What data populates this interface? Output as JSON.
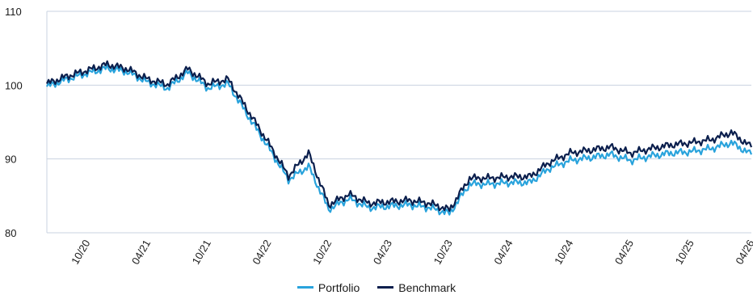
{
  "chart_data": {
    "type": "line",
    "title": "",
    "xlabel": "",
    "ylabel": "",
    "ylim": [
      80,
      110
    ],
    "yticks": [
      "80",
      "90",
      "100",
      "110"
    ],
    "xticks": [
      "10/20",
      "04/21",
      "10/21",
      "04/22",
      "10/22",
      "04/23",
      "10/23",
      "04/24",
      "10/24",
      "04/25",
      "10/25",
      "04/26"
    ],
    "x": [
      "06/20",
      "08/20",
      "10/20",
      "12/20",
      "02/21",
      "04/21",
      "06/21",
      "08/21",
      "10/21",
      "12/21",
      "02/22",
      "04/22",
      "06/22",
      "08/22",
      "10/22",
      "12/22",
      "02/23",
      "04/23",
      "06/23",
      "08/23",
      "10/23",
      "12/23",
      "02/24",
      "04/24",
      "06/24",
      "08/24",
      "10/24",
      "12/24",
      "02/25",
      "04/25",
      "06/25",
      "08/25",
      "10/25",
      "12/25",
      "02/26",
      "04/26"
    ],
    "series": [
      {
        "name": "Portfolio",
        "color": "#29a3dc",
        "values": [
          99.8,
          100.8,
          101.6,
          102.3,
          101.8,
          100.4,
          99.6,
          101.7,
          99.6,
          100.2,
          95.8,
          91.6,
          87.2,
          89.0,
          83.2,
          84.6,
          83.4,
          83.6,
          83.8,
          83.4,
          82.6,
          86.6,
          86.6,
          86.8,
          86.8,
          88.8,
          89.8,
          90.2,
          90.6,
          89.8,
          90.4,
          90.8,
          91.0,
          91.4,
          92.2,
          90.6
        ]
      },
      {
        "name": "Benchmark",
        "color": "#0b1f4d",
        "values": [
          100.2,
          101.2,
          102.0,
          102.8,
          102.2,
          100.8,
          100.1,
          102.2,
          100.2,
          100.8,
          96.5,
          92.2,
          87.7,
          90.8,
          83.8,
          85.2,
          84.0,
          84.2,
          84.4,
          84.0,
          83.1,
          87.4,
          87.4,
          87.6,
          87.6,
          89.6,
          90.8,
          91.2,
          91.6,
          90.8,
          91.4,
          91.9,
          92.2,
          92.6,
          93.6,
          91.6
        ]
      }
    ],
    "grid": true,
    "legend": "bottom-center"
  }
}
